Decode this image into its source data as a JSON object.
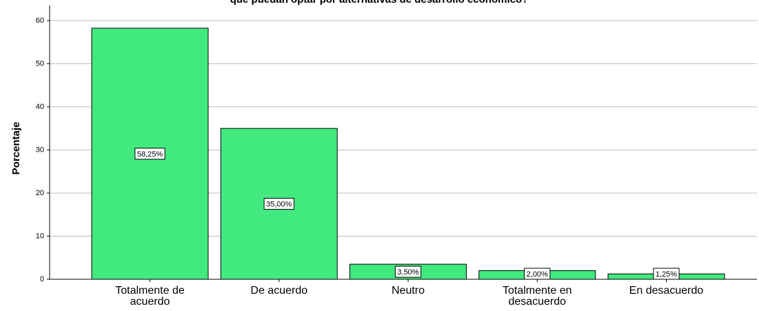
{
  "chart_data": {
    "type": "bar",
    "title": "que puedan optar por alternativas de desarrollo económico?",
    "ylabel": "Porcentaje",
    "categories": [
      "Totalmente de acuerdo",
      "De acuerdo",
      "Neutro",
      "Totalmente en desacuerdo",
      "En desacuerdo"
    ],
    "values": [
      58.25,
      35.0,
      3.5,
      2.0,
      1.25
    ],
    "value_labels": [
      "58,25%",
      "35,00%",
      "3,50%",
      "2,00%",
      "1,25%"
    ],
    "color": "#41e97f",
    "ylim": [
      0,
      63.5
    ],
    "yticks": [
      0,
      10,
      20,
      30,
      40,
      50,
      60
    ],
    "grid": true
  }
}
